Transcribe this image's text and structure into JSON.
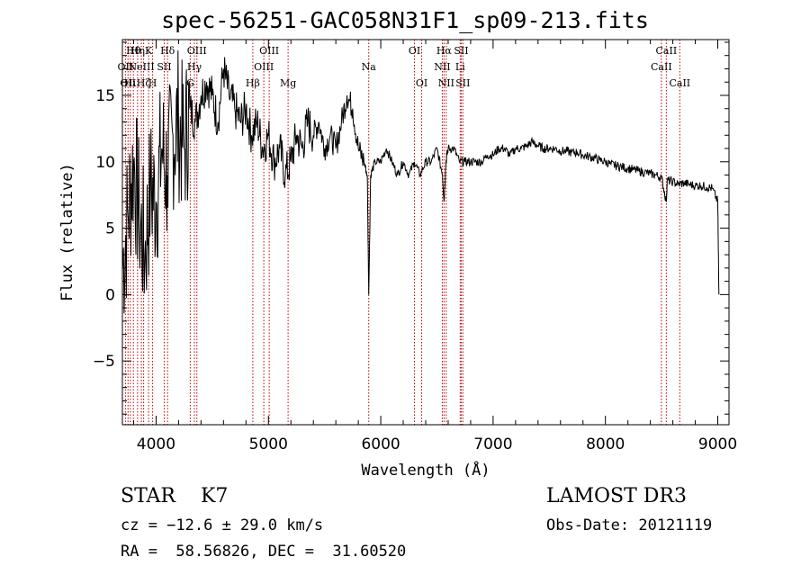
{
  "chart_data": {
    "type": "line",
    "title": "spec-56251-GAC058N31F1_sp09-213.fits",
    "xlabel": "Wavelength (Å)",
    "ylabel": "Flux (relative)",
    "xlim": [
      3700,
      9100
    ],
    "ylim": [
      -9.8,
      19.2
    ],
    "xticks": [
      4000,
      5000,
      6000,
      7000,
      8000,
      9000
    ],
    "yticks": [
      -5,
      0,
      5,
      10,
      15
    ],
    "line_color": "#000000",
    "marker_color": "#c00000",
    "series": [
      {
        "x": [
          3700,
          3750,
          3800,
          3850,
          3900,
          3950,
          4000,
          4050,
          4100,
          4150,
          4200,
          4250,
          4300,
          4350,
          4400,
          4450,
          4500,
          4550,
          4600,
          4650,
          4700,
          4750,
          4800,
          4850,
          4900,
          4950,
          5000,
          5050,
          5100,
          5150,
          5200,
          5250,
          5300,
          5350,
          5400,
          5450,
          5500,
          5550,
          5600,
          5650,
          5700,
          5750,
          5800,
          5850,
          5880,
          5893,
          5910,
          5950,
          6000,
          6050,
          6100,
          6150,
          6200,
          6250,
          6300,
          6350,
          6400,
          6450,
          6500,
          6550,
          6563,
          6580,
          6600,
          6650,
          6700,
          6750,
          6800,
          6850,
          6900,
          6950,
          7000,
          7050,
          7100,
          7150,
          7200,
          7250,
          7300,
          7350,
          7400,
          7450,
          7500,
          7550,
          7600,
          7650,
          7700,
          7750,
          7800,
          7850,
          7900,
          7950,
          8000,
          8050,
          8100,
          8150,
          8200,
          8250,
          8300,
          8350,
          8400,
          8450,
          8500,
          8542,
          8550,
          8600,
          8650,
          8700,
          8750,
          8800,
          8850,
          8900,
          8950,
          9000,
          9010
        ],
        "y": [
          2,
          6,
          10,
          6,
          3,
          8,
          7,
          11,
          9,
          12,
          13,
          11,
          14,
          13,
          15,
          16,
          15,
          13,
          17,
          15,
          14,
          13,
          14,
          12,
          13,
          11,
          12,
          10,
          11,
          9,
          10,
          12,
          11,
          13,
          12,
          13,
          11,
          12,
          11,
          13,
          15,
          14,
          11,
          10,
          9,
          0,
          9,
          10,
          10,
          11,
          10,
          9,
          10,
          9,
          10,
          9,
          10,
          10,
          11,
          9,
          7,
          10,
          11,
          11,
          10,
          10,
          10,
          10,
          10,
          10.5,
          10.5,
          11,
          11,
          10.5,
          11,
          11,
          11.2,
          11.5,
          11.2,
          11,
          11,
          11,
          10.8,
          10.8,
          10.7,
          10.7,
          10.5,
          10.4,
          10.3,
          10.1,
          10,
          9.8,
          9.7,
          9.6,
          9.5,
          9.4,
          9.3,
          9.2,
          9.1,
          9,
          8.8,
          7,
          8.6,
          8.5,
          8.3,
          8.4,
          8.3,
          8.2,
          8.2,
          8.1,
          8.0,
          7.0,
          0
        ]
      }
    ],
    "lines": [
      {
        "wl": 3727,
        "label": "OII",
        "row": 1
      },
      {
        "wl": 3750,
        "label": "OII",
        "row": 2
      },
      {
        "wl": 3771,
        "label": "Hι",
        "row": 2
      },
      {
        "wl": 3798,
        "label": "Hθ",
        "row": 0
      },
      {
        "wl": 3835,
        "label": "Hη",
        "row": 0
      },
      {
        "wl": 3869,
        "label": "NeIII",
        "row": 1
      },
      {
        "wl": 3889,
        "label": "Hζ",
        "row": 2
      },
      {
        "wl": 3933,
        "label": "K",
        "row": 0
      },
      {
        "wl": 3969,
        "label": "H",
        "row": 2
      },
      {
        "wl": 4072,
        "label": "SII",
        "row": 1
      },
      {
        "wl": 4102,
        "label": "Hδ",
        "row": 0
      },
      {
        "wl": 4304,
        "label": "G",
        "row": 2
      },
      {
        "wl": 4341,
        "label": "Hγ",
        "row": 1
      },
      {
        "wl": 4363,
        "label": "OIII",
        "row": 0
      },
      {
        "wl": 4861,
        "label": "Hβ",
        "row": 2
      },
      {
        "wl": 4959,
        "label": "OIII",
        "row": 1
      },
      {
        "wl": 5007,
        "label": "OIII",
        "row": 0
      },
      {
        "wl": 5175,
        "label": "Mg",
        "row": 2
      },
      {
        "wl": 5893,
        "label": "Na",
        "row": 1
      },
      {
        "wl": 6300,
        "label": "OI",
        "row": 0
      },
      {
        "wl": 6364,
        "label": "OI",
        "row": 2
      },
      {
        "wl": 6548,
        "label": "NII",
        "row": 1
      },
      {
        "wl": 6563,
        "label": "Hα",
        "row": 0
      },
      {
        "wl": 6583,
        "label": "NII",
        "row": 2
      },
      {
        "wl": 6707,
        "label": "Li",
        "row": 1
      },
      {
        "wl": 6716,
        "label": "SII",
        "row": 0
      },
      {
        "wl": 6731,
        "label": "SII",
        "row": 2
      },
      {
        "wl": 8498,
        "label": "CaII",
        "row": 1
      },
      {
        "wl": 8542,
        "label": "CaII",
        "row": 0
      },
      {
        "wl": 8662,
        "label": "CaII",
        "row": 2
      }
    ]
  },
  "info": {
    "class_line": "STAR    K7",
    "cz_line": "cz = −12.6 ± 29.0 km/s",
    "radec_line": "RA =  58.56826, DEC =  31.60520",
    "survey": "LAMOST DR3",
    "obs_date": "Obs-Date: 20121119"
  }
}
